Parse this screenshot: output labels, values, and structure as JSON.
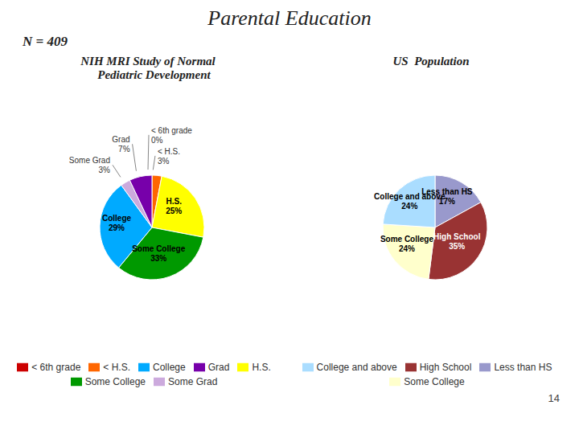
{
  "title": "Parental Education",
  "annotations": [
    "N = 409",
    "14"
  ],
  "chart_data": [
    {
      "type": "pie",
      "title": "NIH MRI Study of Normal\n    Pediatric Development",
      "categories": [
        "< 6th grade",
        "< H.S.",
        "H.S.",
        "Some College",
        "College",
        "Some Grad",
        "Grad"
      ],
      "values": [
        0,
        3,
        25,
        33,
        29,
        3,
        7
      ],
      "value_labels": [
        "0%",
        "3%",
        "25%",
        "33%",
        "29%",
        "3%",
        "7%"
      ],
      "colors": [
        "#cc0000",
        "#ff6600",
        "#ffff00",
        "#009900",
        "#00aaff",
        "#ccaadd",
        "#7700aa"
      ],
      "data_labels": true,
      "legend": "bottom"
    },
    {
      "type": "pie",
      "title": "US  Population",
      "categories": [
        "Less than HS",
        "High School",
        "Some College",
        "College and above"
      ],
      "values": [
        17,
        35,
        24,
        24
      ],
      "value_labels": [
        "17%",
        "35%",
        "24%",
        "24%"
      ],
      "colors": [
        "#9999cc",
        "#993333",
        "#ffffcc",
        "#aaddff"
      ],
      "data_labels": true,
      "legend": "bottom"
    }
  ]
}
